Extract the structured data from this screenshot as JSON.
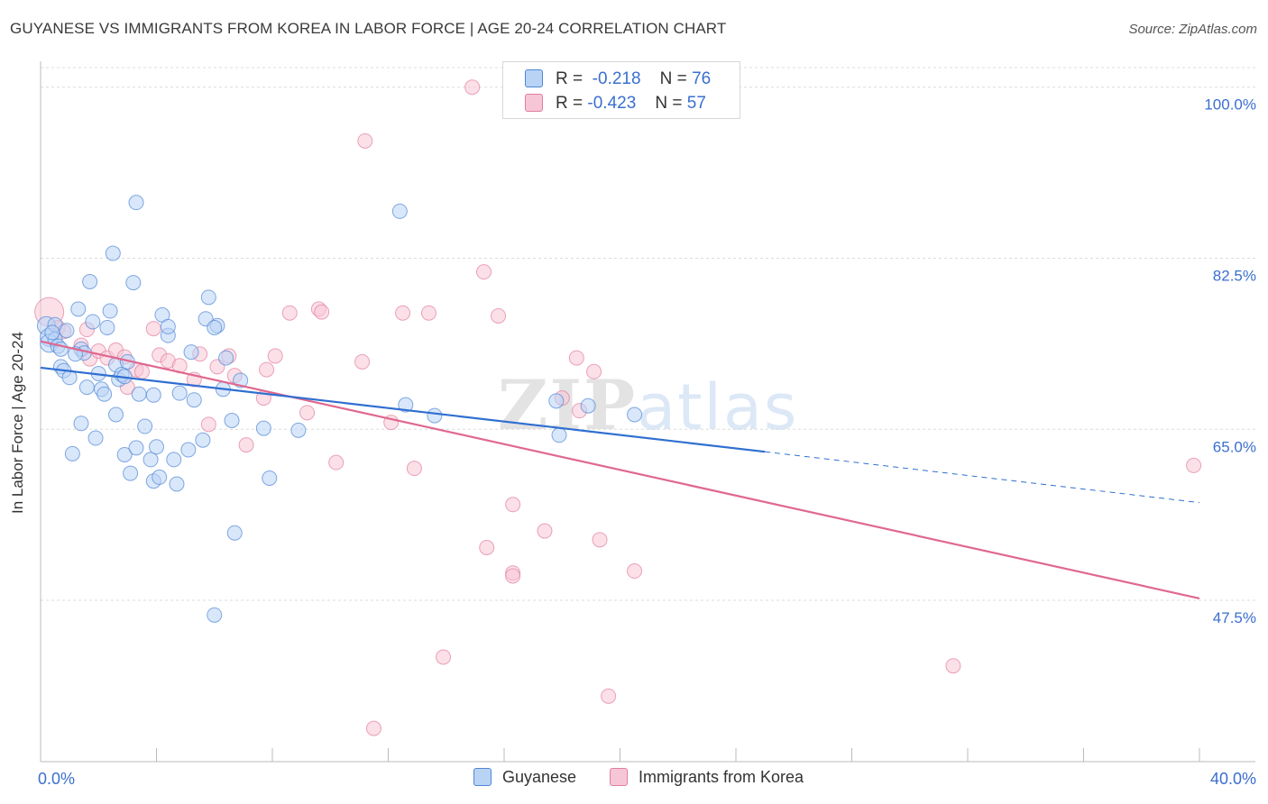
{
  "title": "GUYANESE VS IMMIGRANTS FROM KOREA IN LABOR FORCE | AGE 20-24 CORRELATION CHART",
  "source": "Source: ZipAtlas.com",
  "watermark": {
    "zip": "ZIP",
    "atlas": "atlas"
  },
  "legend": {
    "rows": [
      {
        "r_label": "R =",
        "r_value": "-0.218",
        "n_label": "N =",
        "n_value": "76"
      },
      {
        "r_label": "R =",
        "r_value": "-0.423",
        "n_label": "N =",
        "n_value": "57"
      }
    ]
  },
  "bottom_legend": {
    "guyanese": "Guyanese",
    "korea": "Immigrants from Korea"
  },
  "colors": {
    "guyanese_fill": "#b9d3f5",
    "guyanese_stroke": "#4f86d6",
    "guyanese_line": "#2f6fd1",
    "korea_fill": "#f7c6d6",
    "korea_stroke": "#e27da0",
    "korea_line": "#e0688f",
    "axis_text": "#3a6fcf",
    "grid": "#dcdcdc"
  },
  "chart_data": {
    "type": "scatter",
    "title": "GUYANESE VS IMMIGRANTS FROM KOREA IN LABOR FORCE | AGE 20-24 CORRELATION CHART",
    "xlabel": "",
    "ylabel": "In Labor Force | Age 20-24",
    "xlim": [
      0,
      40
    ],
    "ylim": [
      31.0,
      102.0
    ],
    "x_tick_labels": [
      "0.0%",
      "40.0%"
    ],
    "y_ticks": [
      47.5,
      65.0,
      82.5,
      100.0
    ],
    "y_tick_labels": [
      "47.5%",
      "65.0%",
      "82.5%",
      "100.0%"
    ],
    "grid": true,
    "series": [
      {
        "name": "Guyanese",
        "R": -0.218,
        "N": 76,
        "trend": {
          "x_start": 0.0,
          "y_start": 71.3,
          "x_solid_end": 25.0,
          "y_solid_end": 62.7,
          "x_end": 40.0,
          "y_end": 57.5
        },
        "points": [
          [
            0.2,
            75.6
          ],
          [
            0.3,
            74.4
          ],
          [
            0.3,
            73.8
          ],
          [
            0.5,
            74.2
          ],
          [
            0.5,
            75.7
          ],
          [
            0.6,
            73.5
          ],
          [
            0.7,
            73.2
          ],
          [
            0.7,
            71.4
          ],
          [
            0.8,
            71.0
          ],
          [
            0.9,
            75.1
          ],
          [
            1.0,
            70.3
          ],
          [
            1.1,
            62.5
          ],
          [
            1.3,
            77.3
          ],
          [
            1.4,
            65.6
          ],
          [
            1.4,
            73.2
          ],
          [
            1.5,
            72.8
          ],
          [
            1.6,
            69.3
          ],
          [
            1.7,
            80.1
          ],
          [
            1.8,
            76.0
          ],
          [
            1.9,
            64.1
          ],
          [
            2.0,
            70.7
          ],
          [
            2.1,
            69.1
          ],
          [
            2.2,
            68.6
          ],
          [
            2.3,
            75.4
          ],
          [
            2.4,
            77.1
          ],
          [
            2.5,
            83.0
          ],
          [
            2.6,
            66.5
          ],
          [
            2.6,
            71.6
          ],
          [
            2.7,
            70.1
          ],
          [
            2.8,
            70.6
          ],
          [
            2.9,
            62.4
          ],
          [
            3.0,
            71.9
          ],
          [
            3.1,
            60.5
          ],
          [
            3.2,
            80.0
          ],
          [
            3.3,
            63.1
          ],
          [
            3.3,
            88.2
          ],
          [
            3.4,
            68.6
          ],
          [
            3.6,
            65.3
          ],
          [
            3.8,
            61.9
          ],
          [
            3.9,
            59.7
          ],
          [
            3.9,
            68.5
          ],
          [
            4.0,
            63.2
          ],
          [
            4.1,
            60.1
          ],
          [
            4.2,
            76.7
          ],
          [
            4.4,
            74.6
          ],
          [
            4.4,
            75.5
          ],
          [
            4.6,
            61.9
          ],
          [
            4.7,
            59.4
          ],
          [
            5.1,
            62.9
          ],
          [
            5.2,
            72.9
          ],
          [
            5.3,
            68.0
          ],
          [
            5.6,
            63.9
          ],
          [
            5.7,
            76.3
          ],
          [
            5.8,
            78.5
          ],
          [
            6.1,
            75.6
          ],
          [
            6.3,
            69.1
          ],
          [
            6.4,
            72.3
          ],
          [
            6.6,
            65.9
          ],
          [
            6.7,
            54.4
          ],
          [
            6.9,
            70.0
          ],
          [
            7.7,
            65.1
          ],
          [
            7.9,
            60.0
          ],
          [
            8.9,
            64.9
          ],
          [
            12.4,
            87.3
          ],
          [
            12.6,
            67.5
          ],
          [
            13.6,
            66.4
          ],
          [
            17.8,
            67.9
          ],
          [
            17.9,
            64.4
          ],
          [
            18.9,
            67.4
          ],
          [
            20.5,
            66.5
          ],
          [
            6.0,
            46.0
          ],
          [
            0.4,
            74.9
          ],
          [
            1.2,
            72.7
          ],
          [
            2.9,
            70.4
          ],
          [
            4.8,
            68.7
          ],
          [
            6.0,
            75.4
          ]
        ]
      },
      {
        "name": "Immigrants from Korea",
        "R": -0.423,
        "N": 57,
        "trend": {
          "x_start": 0.0,
          "y_start": 74.0,
          "x_end": 40.0,
          "y_end": 47.7
        },
        "points": [
          [
            0.3,
            77.0
          ],
          [
            0.6,
            75.4
          ],
          [
            0.8,
            75.0
          ],
          [
            1.4,
            73.6
          ],
          [
            1.7,
            72.2
          ],
          [
            2.0,
            73.0
          ],
          [
            2.3,
            72.3
          ],
          [
            2.6,
            73.1
          ],
          [
            2.9,
            72.4
          ],
          [
            3.0,
            69.3
          ],
          [
            3.3,
            71.1
          ],
          [
            3.5,
            70.9
          ],
          [
            3.9,
            75.3
          ],
          [
            4.1,
            72.6
          ],
          [
            4.4,
            72.0
          ],
          [
            4.8,
            71.5
          ],
          [
            5.3,
            70.1
          ],
          [
            5.5,
            72.7
          ],
          [
            5.8,
            65.5
          ],
          [
            6.1,
            71.4
          ],
          [
            6.5,
            72.5
          ],
          [
            6.7,
            70.5
          ],
          [
            7.1,
            63.4
          ],
          [
            7.7,
            68.2
          ],
          [
            7.8,
            71.1
          ],
          [
            8.1,
            72.5
          ],
          [
            8.6,
            76.9
          ],
          [
            9.2,
            66.7
          ],
          [
            9.6,
            77.3
          ],
          [
            9.7,
            77.0
          ],
          [
            10.2,
            61.6
          ],
          [
            11.1,
            71.9
          ],
          [
            11.2,
            94.5
          ],
          [
            12.1,
            65.7
          ],
          [
            12.5,
            76.9
          ],
          [
            12.9,
            61.0
          ],
          [
            13.4,
            76.9
          ],
          [
            13.9,
            41.7
          ],
          [
            14.9,
            100.0
          ],
          [
            15.3,
            81.1
          ],
          [
            15.4,
            52.9
          ],
          [
            15.8,
            76.6
          ],
          [
            16.3,
            57.3
          ],
          [
            16.3,
            50.3
          ],
          [
            16.3,
            50.0
          ],
          [
            17.4,
            54.6
          ],
          [
            18.0,
            68.2
          ],
          [
            18.5,
            72.3
          ],
          [
            18.6,
            66.9
          ],
          [
            19.1,
            70.9
          ],
          [
            19.3,
            53.7
          ],
          [
            11.5,
            34.4
          ],
          [
            19.6,
            37.7
          ],
          [
            20.5,
            50.5
          ],
          [
            31.5,
            40.8
          ],
          [
            39.8,
            61.3
          ],
          [
            1.6,
            75.2
          ]
        ]
      }
    ]
  }
}
